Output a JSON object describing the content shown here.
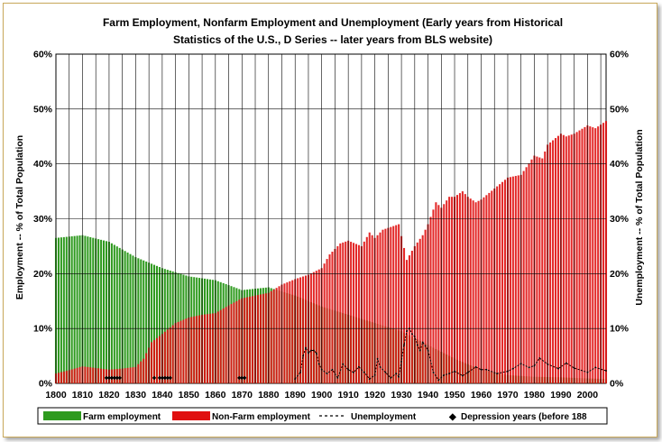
{
  "chart_data": {
    "type": "bar",
    "title_line1": "Farm Employment, Nonfarm Employment and Unemployment  (Early years from Historical",
    "title_line2": "Statistics of the U.S., D Series -- later years from BLS website)",
    "ylabel_left": "Employment -- % of Total Population",
    "ylabel_right": "Unemployment -- % of Total Population",
    "ylim": [
      0,
      60
    ],
    "xlim": [
      1800,
      2007
    ],
    "y_ticks": [
      "0%",
      "10%",
      "20%",
      "30%",
      "40%",
      "50%",
      "60%"
    ],
    "x_ticks": [
      "1800",
      "1810",
      "1820",
      "1830",
      "1840",
      "1850",
      "1860",
      "1870",
      "1880",
      "1890",
      "1900",
      "1910",
      "1920",
      "1930",
      "1940",
      "1950",
      "1960",
      "1970",
      "1980",
      "1990",
      "2000"
    ],
    "grid": true,
    "legend_position": "bottom",
    "legend": {
      "farm": "Farm employment",
      "nonfarm": "Non-Farm employment",
      "unemployment": "Unemployment",
      "depression": "Depression years (before 188"
    },
    "colors": {
      "farm": "#2e9a1e",
      "nonfarm": "#e01010",
      "unemployment": "#000000",
      "depression": "#000000"
    },
    "farm_series": [
      [
        1800,
        26.5
      ],
      [
        1810,
        27.0
      ],
      [
        1820,
        25.8
      ],
      [
        1830,
        23.0
      ],
      [
        1840,
        21.0
      ],
      [
        1850,
        19.5
      ],
      [
        1860,
        18.8
      ],
      [
        1870,
        17.0
      ],
      [
        1880,
        17.5
      ],
      [
        1890,
        16.0
      ],
      [
        1900,
        14.0
      ],
      [
        1910,
        12.5
      ],
      [
        1920,
        11.0
      ],
      [
        1930,
        9.5
      ],
      [
        1940,
        7.0
      ],
      [
        1950,
        4.5
      ],
      [
        1960,
        2.5
      ],
      [
        1970,
        1.5
      ],
      [
        1980,
        1.2
      ],
      [
        1990,
        1.1
      ],
      [
        2000,
        0.9
      ],
      [
        2007,
        0.8
      ]
    ],
    "nonfarm_series": [
      [
        1800,
        1.8
      ],
      [
        1805,
        2.4
      ],
      [
        1810,
        3.1
      ],
      [
        1815,
        2.8
      ],
      [
        1820,
        2.5
      ],
      [
        1825,
        2.7
      ],
      [
        1830,
        3.0
      ],
      [
        1833,
        4.5
      ],
      [
        1836,
        7.5
      ],
      [
        1840,
        9.0
      ],
      [
        1845,
        11.0
      ],
      [
        1850,
        12.0
      ],
      [
        1855,
        12.5
      ],
      [
        1860,
        12.8
      ],
      [
        1865,
        14.2
      ],
      [
        1870,
        15.5
      ],
      [
        1875,
        16.0
      ],
      [
        1880,
        16.5
      ],
      [
        1885,
        18.0
      ],
      [
        1890,
        19.0
      ],
      [
        1895,
        19.8
      ],
      [
        1900,
        21.0
      ],
      [
        1903,
        23.5
      ],
      [
        1907,
        25.5
      ],
      [
        1910,
        26.0
      ],
      [
        1915,
        25.0
      ],
      [
        1918,
        27.5
      ],
      [
        1920,
        26.5
      ],
      [
        1923,
        28.0
      ],
      [
        1926,
        28.5
      ],
      [
        1929,
        29.0
      ],
      [
        1932,
        22.5
      ],
      [
        1935,
        25.0
      ],
      [
        1938,
        27.0
      ],
      [
        1940,
        29.0
      ],
      [
        1943,
        33.0
      ],
      [
        1945,
        32.0
      ],
      [
        1948,
        34.0
      ],
      [
        1950,
        34.0
      ],
      [
        1953,
        35.0
      ],
      [
        1955,
        34.0
      ],
      [
        1958,
        33.0
      ],
      [
        1960,
        33.5
      ],
      [
        1965,
        35.5
      ],
      [
        1970,
        37.5
      ],
      [
        1975,
        38.0
      ],
      [
        1980,
        41.5
      ],
      [
        1983,
        41.0
      ],
      [
        1985,
        43.5
      ],
      [
        1990,
        45.5
      ],
      [
        1992,
        45.0
      ],
      [
        1995,
        45.5
      ],
      [
        2000,
        47.0
      ],
      [
        2003,
        46.5
      ],
      [
        2007,
        47.8
      ]
    ],
    "unemployment_series": [
      [
        1890,
        0.8
      ],
      [
        1892,
        2.0
      ],
      [
        1893,
        5.0
      ],
      [
        1894,
        6.5
      ],
      [
        1895,
        5.5
      ],
      [
        1896,
        6.0
      ],
      [
        1897,
        6.0
      ],
      [
        1898,
        5.5
      ],
      [
        1899,
        3.5
      ],
      [
        1900,
        2.5
      ],
      [
        1902,
        1.8
      ],
      [
        1904,
        2.5
      ],
      [
        1906,
        1.0
      ],
      [
        1908,
        3.5
      ],
      [
        1910,
        2.5
      ],
      [
        1912,
        2.0
      ],
      [
        1914,
        3.0
      ],
      [
        1916,
        2.0
      ],
      [
        1918,
        0.8
      ],
      [
        1920,
        1.5
      ],
      [
        1921,
        4.5
      ],
      [
        1922,
        3.0
      ],
      [
        1924,
        2.0
      ],
      [
        1926,
        1.0
      ],
      [
        1928,
        1.8
      ],
      [
        1929,
        1.2
      ],
      [
        1930,
        4.0
      ],
      [
        1931,
        7.0
      ],
      [
        1932,
        9.5
      ],
      [
        1933,
        10.0
      ],
      [
        1934,
        9.0
      ],
      [
        1935,
        8.5
      ],
      [
        1936,
        7.0
      ],
      [
        1937,
        6.0
      ],
      [
        1938,
        7.5
      ],
      [
        1939,
        6.8
      ],
      [
        1940,
        6.0
      ],
      [
        1942,
        2.0
      ],
      [
        1944,
        0.6
      ],
      [
        1946,
        1.5
      ],
      [
        1948,
        1.8
      ],
      [
        1950,
        2.2
      ],
      [
        1953,
        1.4
      ],
      [
        1955,
        2.0
      ],
      [
        1958,
        3.0
      ],
      [
        1960,
        2.5
      ],
      [
        1962,
        2.5
      ],
      [
        1966,
        1.8
      ],
      [
        1970,
        2.2
      ],
      [
        1972,
        2.7
      ],
      [
        1975,
        3.6
      ],
      [
        1978,
        2.9
      ],
      [
        1980,
        3.2
      ],
      [
        1982,
        4.6
      ],
      [
        1985,
        3.5
      ],
      [
        1989,
        2.7
      ],
      [
        1992,
        3.7
      ],
      [
        1995,
        2.8
      ],
      [
        2000,
        2.0
      ],
      [
        2003,
        2.9
      ],
      [
        2007,
        2.3
      ]
    ],
    "depression_years": [
      1819,
      1820,
      1821,
      1822,
      1823,
      1824,
      1837,
      1839,
      1840,
      1841,
      1842,
      1843,
      1869,
      1870,
      1871
    ]
  }
}
